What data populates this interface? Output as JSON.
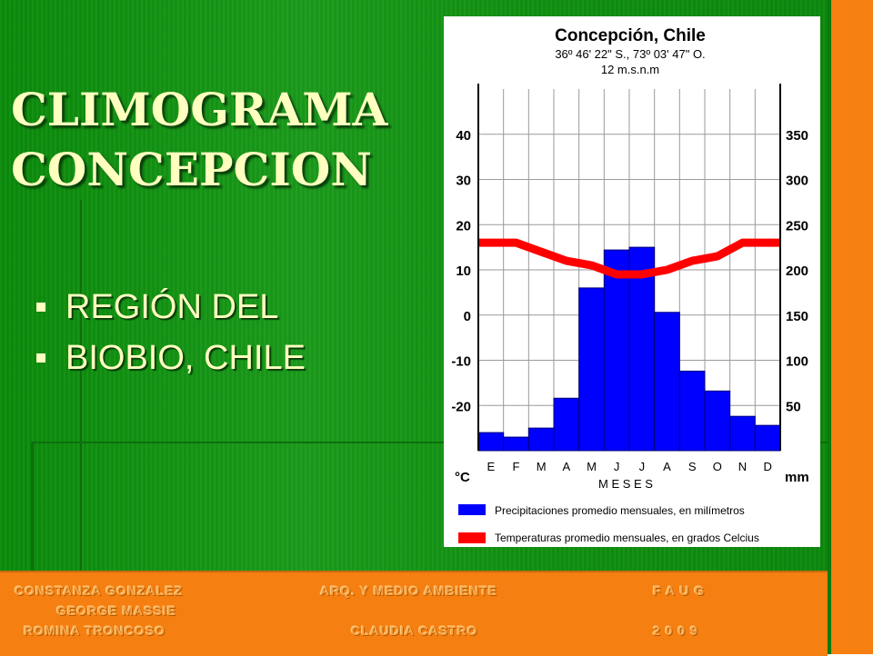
{
  "slide": {
    "title_line1": "CLIMOGRAMA",
    "title_line2": "CONCEPCION",
    "bullets": [
      "REGIÓN DEL",
      "BIOBIO, CHILE"
    ]
  },
  "footer": {
    "authors": [
      "CONSTANZA GONZALEZ",
      "GEORGE MASSIE",
      "ROMINA TRONCOSO"
    ],
    "course": "ARQ. Y MEDIO AMBIENTE",
    "teacher": "CLAUDIA CASTRO",
    "faculty": "F A U G",
    "year": "2 0 0 9"
  },
  "colors": {
    "background_green": "#119111",
    "accent_orange": "#f57f10",
    "title_yellow": "#ffffc0",
    "bar_blue": "#0000ff",
    "temp_red": "#ff0000"
  },
  "chart_data": {
    "type": "bar",
    "title": "Concepción, Chile",
    "subtitle_lines": [
      "36º 46' 22\" S., 73º 03' 47\" O.",
      "12 m.s.n.m"
    ],
    "categories": [
      "E",
      "F",
      "M",
      "A",
      "M",
      "J",
      "J",
      "A",
      "S",
      "O",
      "N",
      "D"
    ],
    "xlabel": "M E S E S",
    "y_left_label": "°C",
    "y_right_label": "mm",
    "y_left_ticks": [
      40,
      30,
      20,
      10,
      0,
      -10,
      -20
    ],
    "y_right_ticks": [
      350,
      300,
      250,
      200,
      150,
      100,
      50
    ],
    "y_left_range": [
      -30,
      50
    ],
    "y_right_range": [
      0,
      400
    ],
    "grid": true,
    "series": [
      {
        "name": "Precipitaciones promedio mensuales, en milímetros",
        "kind": "bar",
        "axis": "right",
        "values": [
          20,
          15,
          25,
          58,
          180,
          222,
          225,
          153,
          88,
          66,
          38,
          28
        ]
      },
      {
        "name": "Temperaturas promedio mensuales, en grados Celcius",
        "kind": "line",
        "axis": "left",
        "values": [
          16,
          16,
          14,
          12,
          11,
          9,
          9,
          10,
          12,
          13,
          16,
          16
        ]
      }
    ],
    "legend_position": "bottom"
  }
}
